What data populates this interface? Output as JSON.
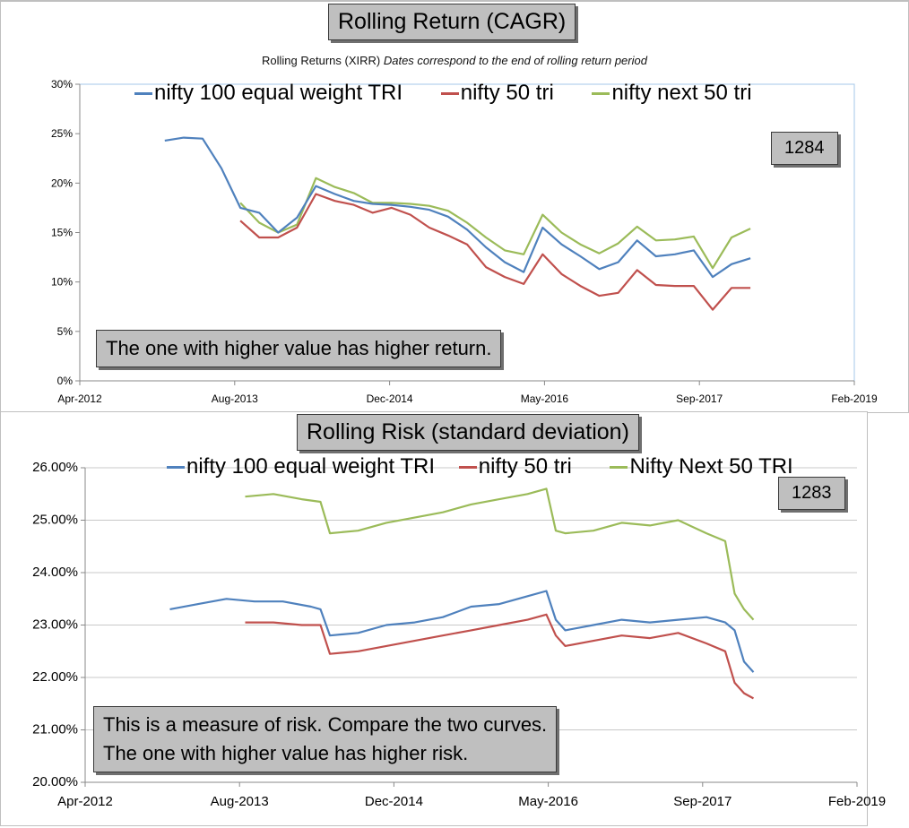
{
  "top": {
    "title": "Rolling Return (CAGR)",
    "subtitle_plain": "Rolling Returns (XIRR)",
    "subtitle_italic": "Dates correspond to the end of rolling return period",
    "legend": [
      "nifty 100 equal weight TRI",
      "nifty 50 tri",
      "nifty next 50 tri"
    ],
    "id_label": "1284",
    "note": "The one with higher value has higher return."
  },
  "bottom": {
    "title": "Rolling Risk (standard deviation)",
    "legend": [
      "nifty 100 equal weight TRI",
      "nifty 50 tri",
      "Nifty Next 50 TRI"
    ],
    "id_label": "1283",
    "note_line1": "This is a measure of risk.  Compare the two curves.",
    "note_line2": "The one with higher value has higher risk."
  },
  "colors": {
    "blue": "#4f81bd",
    "red": "#c0504d",
    "green": "#9bbb59",
    "grid": "#d0d0d0"
  },
  "chart_data": [
    {
      "type": "line",
      "title": "Rolling Return (CAGR)",
      "subtitle": "Rolling Returns (XIRR) Dates correspond to the end of rolling return period",
      "x_tick_labels": [
        "Apr-2012",
        "Aug-2013",
        "Dec-2014",
        "May-2016",
        "Sep-2017",
        "Feb-2019"
      ],
      "y_tick_labels": [
        "0%",
        "5%",
        "10%",
        "15%",
        "20%",
        "25%",
        "30%"
      ],
      "xlim": [
        "2012-04",
        "2019-02"
      ],
      "ylim": [
        0,
        30
      ],
      "grid": false,
      "legend_position": "top",
      "series": [
        {
          "name": "nifty 100 equal weight TRI",
          "color": "#4f81bd",
          "x": [
            "2013-01",
            "2013-03",
            "2013-05",
            "2013-07",
            "2013-09",
            "2013-11",
            "2014-01",
            "2014-03",
            "2014-05",
            "2014-07",
            "2014-09",
            "2014-11",
            "2015-01",
            "2015-03",
            "2015-05",
            "2015-07",
            "2015-09",
            "2015-11",
            "2016-01",
            "2016-03",
            "2016-05",
            "2016-07",
            "2016-09",
            "2016-11",
            "2017-01",
            "2017-03",
            "2017-05",
            "2017-07",
            "2017-09",
            "2017-11",
            "2018-01",
            "2018-03"
          ],
          "y": [
            24.3,
            24.6,
            24.5,
            21.5,
            17.5,
            17.0,
            15.0,
            16.5,
            19.7,
            18.9,
            18.2,
            17.9,
            17.8,
            17.6,
            17.3,
            16.6,
            15.3,
            13.5,
            12.0,
            11.0,
            15.5,
            13.8,
            12.6,
            11.3,
            12.0,
            14.2,
            12.6,
            12.8,
            13.2,
            10.5,
            11.8,
            12.4
          ]
        },
        {
          "name": "nifty 50 tri",
          "color": "#c0504d",
          "x": [
            "2013-09",
            "2013-11",
            "2014-01",
            "2014-03",
            "2014-05",
            "2014-07",
            "2014-09",
            "2014-11",
            "2015-01",
            "2015-03",
            "2015-05",
            "2015-07",
            "2015-09",
            "2015-11",
            "2016-01",
            "2016-03",
            "2016-05",
            "2016-07",
            "2016-09",
            "2016-11",
            "2017-01",
            "2017-03",
            "2017-05",
            "2017-07",
            "2017-09",
            "2017-11",
            "2018-01",
            "2018-03"
          ],
          "y": [
            16.2,
            14.5,
            14.5,
            15.5,
            18.9,
            18.2,
            17.8,
            17.0,
            17.5,
            16.8,
            15.5,
            14.7,
            13.8,
            11.5,
            10.5,
            9.8,
            12.8,
            10.8,
            9.6,
            8.6,
            8.9,
            11.2,
            9.7,
            9.6,
            9.6,
            7.2,
            9.4,
            9.4
          ]
        },
        {
          "name": "nifty next 50 tri",
          "color": "#9bbb59",
          "x": [
            "2013-09",
            "2013-11",
            "2014-01",
            "2014-03",
            "2014-05",
            "2014-07",
            "2014-09",
            "2014-11",
            "2015-01",
            "2015-03",
            "2015-05",
            "2015-07",
            "2015-09",
            "2015-11",
            "2016-01",
            "2016-03",
            "2016-05",
            "2016-07",
            "2016-09",
            "2016-11",
            "2017-01",
            "2017-03",
            "2017-05",
            "2017-07",
            "2017-09",
            "2017-11",
            "2018-01",
            "2018-03"
          ],
          "y": [
            18.0,
            16.0,
            15.0,
            15.8,
            20.5,
            19.6,
            19.0,
            18.0,
            18.0,
            17.9,
            17.7,
            17.2,
            16.0,
            14.5,
            13.2,
            12.8,
            16.8,
            15.0,
            13.8,
            12.9,
            13.9,
            15.6,
            14.2,
            14.3,
            14.6,
            11.4,
            14.5,
            15.4
          ]
        }
      ]
    },
    {
      "type": "line",
      "title": "Rolling Risk (standard deviation)",
      "x_tick_labels": [
        "Apr-2012",
        "Aug-2013",
        "Dec-2014",
        "May-2016",
        "Sep-2017",
        "Feb-2019"
      ],
      "y_tick_labels": [
        "20.00%",
        "21.00%",
        "22.00%",
        "23.00%",
        "24.00%",
        "25.00%",
        "26.00%"
      ],
      "xlim": [
        "2012-04",
        "2019-02"
      ],
      "ylim": [
        20,
        26
      ],
      "grid": true,
      "legend_position": "top",
      "series": [
        {
          "name": "nifty 100 equal weight TRI",
          "color": "#4f81bd",
          "x": [
            "2013-01",
            "2013-04",
            "2013-07",
            "2013-10",
            "2014-01",
            "2014-04",
            "2014-05",
            "2014-06",
            "2014-09",
            "2014-12",
            "2015-03",
            "2015-06",
            "2015-09",
            "2015-12",
            "2016-03",
            "2016-05",
            "2016-06",
            "2016-07",
            "2016-10",
            "2017-01",
            "2017-04",
            "2017-07",
            "2017-10",
            "2017-12",
            "2018-01",
            "2018-02",
            "2018-03"
          ],
          "y": [
            23.3,
            23.4,
            23.5,
            23.45,
            23.45,
            23.35,
            23.3,
            22.8,
            22.85,
            23.0,
            23.05,
            23.15,
            23.35,
            23.4,
            23.55,
            23.65,
            23.1,
            22.9,
            23.0,
            23.1,
            23.05,
            23.1,
            23.15,
            23.05,
            22.9,
            22.3,
            22.1
          ]
        },
        {
          "name": "nifty 50 tri",
          "color": "#c0504d",
          "x": [
            "2013-09",
            "2013-12",
            "2014-03",
            "2014-05",
            "2014-06",
            "2014-09",
            "2014-12",
            "2015-03",
            "2015-06",
            "2015-09",
            "2015-12",
            "2016-03",
            "2016-05",
            "2016-06",
            "2016-07",
            "2016-10",
            "2017-01",
            "2017-04",
            "2017-07",
            "2017-10",
            "2017-12",
            "2018-01",
            "2018-02",
            "2018-03"
          ],
          "y": [
            23.05,
            23.05,
            23.0,
            23.0,
            22.45,
            22.5,
            22.6,
            22.7,
            22.8,
            22.9,
            23.0,
            23.1,
            23.2,
            22.8,
            22.6,
            22.7,
            22.8,
            22.75,
            22.85,
            22.65,
            22.5,
            21.9,
            21.7,
            21.6
          ]
        },
        {
          "name": "Nifty Next 50 TRI",
          "color": "#9bbb59",
          "x": [
            "2013-09",
            "2013-12",
            "2014-03",
            "2014-05",
            "2014-06",
            "2014-09",
            "2014-12",
            "2015-03",
            "2015-06",
            "2015-09",
            "2015-12",
            "2016-03",
            "2016-05",
            "2016-06",
            "2016-07",
            "2016-10",
            "2017-01",
            "2017-04",
            "2017-07",
            "2017-10",
            "2017-12",
            "2018-01",
            "2018-02",
            "2018-03"
          ],
          "y": [
            25.45,
            25.5,
            25.4,
            25.35,
            24.75,
            24.8,
            24.95,
            25.05,
            25.15,
            25.3,
            25.4,
            25.5,
            25.6,
            24.8,
            24.75,
            24.8,
            24.95,
            24.9,
            25.0,
            24.75,
            24.6,
            23.6,
            23.3,
            23.1
          ]
        }
      ]
    }
  ]
}
